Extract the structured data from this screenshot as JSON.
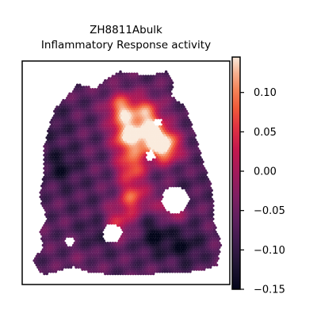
{
  "chart_data": {
    "type": "heatmap",
    "title_lines": [
      "ZH8811Abulk",
      "Inflammatory Response activity"
    ],
    "xlabel": "",
    "ylabel": "",
    "grid": false,
    "colormap": "rocket",
    "colorbar": {
      "position": "right",
      "range": [
        -0.15,
        0.145
      ],
      "ticks": [
        0.1,
        0.05,
        0.0,
        -0.05,
        -0.1,
        -0.15
      ],
      "tick_labels": [
        "0.10",
        "0.05",
        "0.00",
        "−0.05",
        "−0.10",
        "−0.15"
      ]
    },
    "hot_spots": [
      {
        "u": 0.47,
        "v": 0.2,
        "value": 0.11
      },
      {
        "u": 0.5,
        "v": 0.33,
        "value": 0.14
      },
      {
        "u": 0.63,
        "v": 0.33,
        "value": 0.13
      },
      {
        "u": 0.7,
        "v": 0.38,
        "value": 0.13
      },
      {
        "u": 0.6,
        "v": 0.22,
        "value": 0.08
      },
      {
        "u": 0.52,
        "v": 0.47,
        "value": 0.08
      },
      {
        "u": 0.53,
        "v": 0.62,
        "value": 0.07
      },
      {
        "u": 0.73,
        "v": 0.66,
        "value": 0.05
      },
      {
        "u": 0.45,
        "v": 0.74,
        "value": 0.04
      }
    ],
    "cold_spots": [
      {
        "u": 0.15,
        "v": 0.47,
        "value": -0.13
      },
      {
        "u": 0.12,
        "v": 0.27,
        "value": -0.1
      },
      {
        "u": 0.35,
        "v": 0.8,
        "value": -0.12
      },
      {
        "u": 0.65,
        "v": 0.8,
        "value": -0.14
      },
      {
        "u": 0.8,
        "v": 0.85,
        "value": -0.13
      },
      {
        "u": 0.25,
        "v": 0.62,
        "value": -0.08
      },
      {
        "u": 0.78,
        "v": 0.6,
        "value": -0.1
      },
      {
        "u": 0.28,
        "v": 0.9,
        "value": -0.05
      }
    ]
  }
}
